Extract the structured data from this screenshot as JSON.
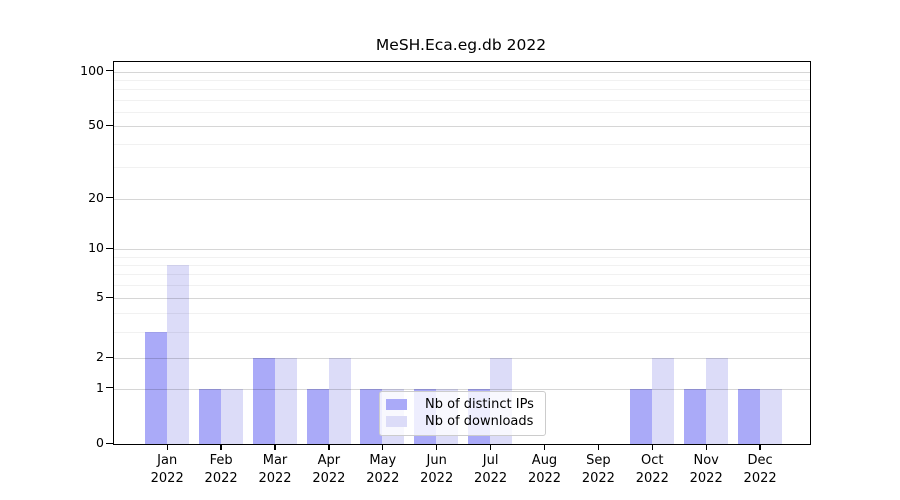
{
  "chart_data": {
    "type": "bar",
    "title": "MeSH.Eca.eg.db 2022",
    "categories": [
      "Jan",
      "Feb",
      "Mar",
      "Apr",
      "May",
      "Jun",
      "Jul",
      "Aug",
      "Sep",
      "Oct",
      "Nov",
      "Dec"
    ],
    "year_label": "2022",
    "series": [
      {
        "name": "Nb of distinct IPs",
        "color": "#aaaaf8",
        "values": [
          3,
          1,
          2,
          1,
          1,
          1,
          1,
          0,
          0,
          1,
          1,
          1
        ]
      },
      {
        "name": "Nb of downloads",
        "color": "#dcdcf8",
        "values": [
          8,
          1,
          2,
          2,
          1,
          1,
          2,
          0,
          0,
          2,
          2,
          1
        ]
      }
    ],
    "yticks": [
      0,
      1,
      2,
      5,
      10,
      20,
      50,
      100
    ],
    "ylim": [
      0,
      100
    ],
    "xlabel": "",
    "ylabel": "",
    "scale": "log-above-1-linear-below-1",
    "grid": true,
    "legend_position": "inside-bottom-center"
  }
}
